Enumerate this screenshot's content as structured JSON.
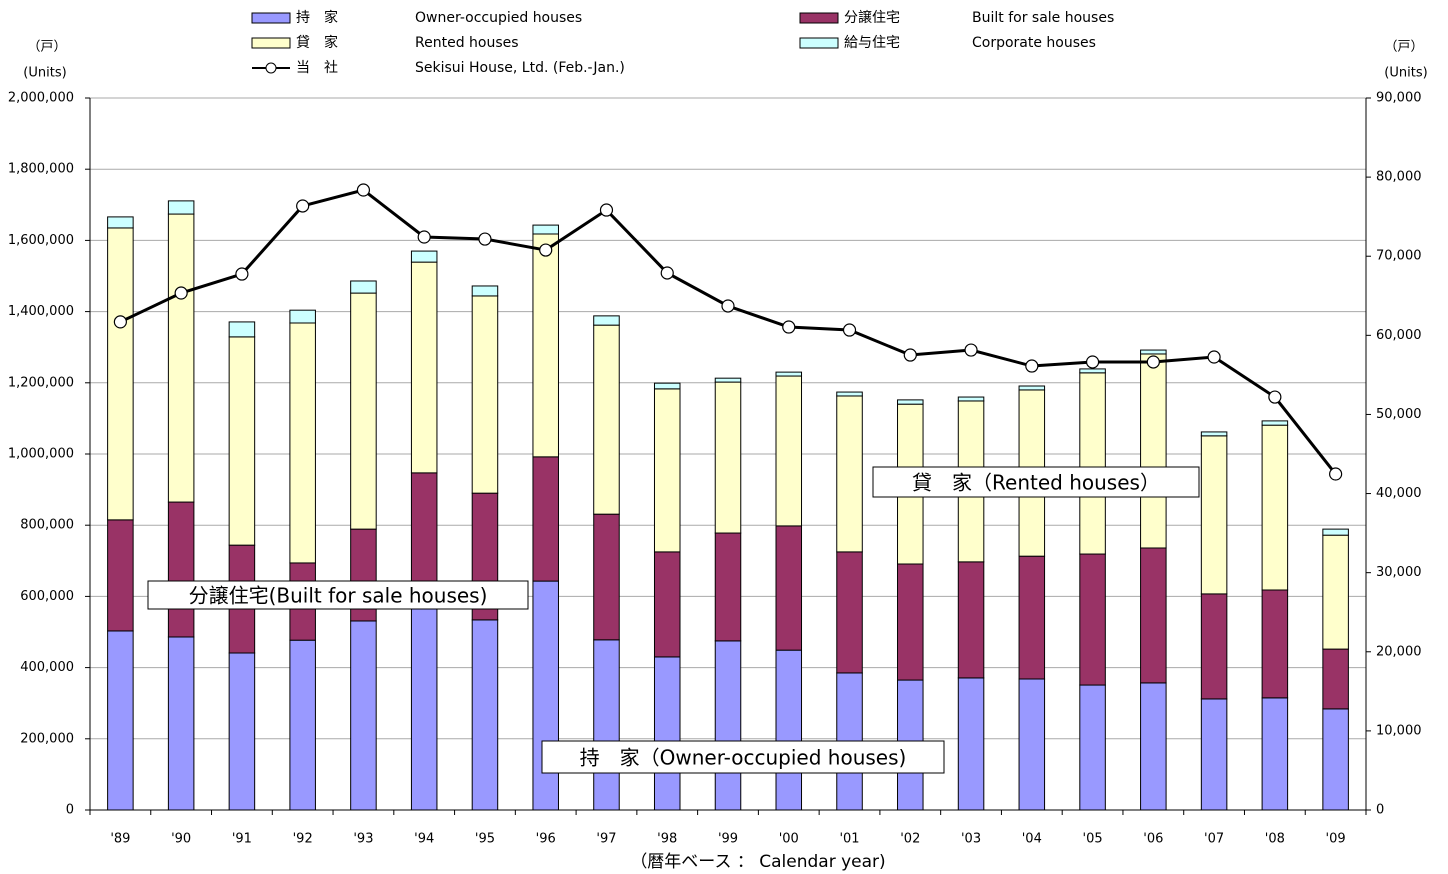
{
  "chart_data": {
    "type": "stacked-bar-line",
    "left_unit_labels": [
      "（戸）",
      "(Units)"
    ],
    "right_unit_labels": [
      "（戸）",
      "(Units)"
    ],
    "x_label": "（暦年ベース ： Calendar year)",
    "annotations": [
      "分譲住宅(Built for sale houses)",
      "貸　家（Rented houses）",
      "持　家（Owner-occupied houses)"
    ],
    "categories": [
      "'89",
      "'90",
      "'91",
      "'92",
      "'93",
      "'94",
      "'95",
      "'96",
      "'97",
      "'98",
      "'99",
      "'00",
      "'01",
      "'02",
      "'03",
      "'04",
      "'05",
      "'06",
      "'07",
      "'08",
      "'09"
    ],
    "series": [
      {
        "name": "持　家",
        "label_en": "Owner-occupied houses",
        "color": "#9999ff",
        "values": [
          503000,
          486000,
          441000,
          477000,
          531000,
          570000,
          534000,
          643000,
          478000,
          430000,
          475000,
          449000,
          385000,
          365000,
          371000,
          368000,
          351000,
          357000,
          312000,
          315000,
          284000
        ]
      },
      {
        "name": "分譲住宅",
        "label_en": "Built for sale houses",
        "color": "#993366",
        "values": [
          312000,
          379000,
          303000,
          217000,
          258000,
          377000,
          356000,
          349000,
          353000,
          295000,
          303000,
          349000,
          340000,
          326000,
          326000,
          345000,
          368000,
          379000,
          295000,
          303000,
          168000
        ]
      },
      {
        "name": "貸　家",
        "label_en": "Rented houses",
        "color": "#ffffcc",
        "values": [
          820000,
          809000,
          585000,
          674000,
          663000,
          592000,
          554000,
          626000,
          531000,
          458000,
          424000,
          421000,
          438000,
          449000,
          452000,
          467000,
          509000,
          545000,
          444000,
          463000,
          320000
        ]
      },
      {
        "name": "給与住宅",
        "label_en": "Corporate houses",
        "color": "#ccffff",
        "values": [
          31000,
          37000,
          42000,
          36000,
          34000,
          31000,
          28000,
          25000,
          26000,
          16000,
          11000,
          11000,
          11000,
          12000,
          11000,
          11000,
          11000,
          11000,
          11000,
          12000,
          17000
        ]
      },
      {
        "name": "当　社",
        "label_en": "Sekisui House, Ltd. (Feb.-Jan.)",
        "color": "#000000",
        "axis": "y2",
        "kind": "line",
        "values": [
          61700,
          65350,
          67750,
          76350,
          78370,
          72430,
          72170,
          70780,
          75840,
          67880,
          63710,
          61050,
          60670,
          57510,
          58140,
          56120,
          56630,
          56630,
          57260,
          52200,
          42470
        ]
      }
    ],
    "ylim": [
      0,
      2000000
    ],
    "yticks": [
      0,
      {
        "value": 200000,
        "label": "200,000"
      },
      {
        "value": 400000,
        "label": "400,000"
      },
      {
        "value": 600000,
        "label": "600,000"
      },
      {
        "value": 800000,
        "label": "800,000"
      },
      {
        "value": 1000000,
        "label": "1,000,000"
      },
      {
        "value": 1200000,
        "label": "1,200,000"
      },
      {
        "value": 1400000,
        "label": "1,400,000"
      },
      {
        "value": 1600000,
        "label": "1,600,000"
      },
      {
        "value": 1800000,
        "label": "1,800,000"
      },
      {
        "value": 2000000,
        "label": "2,000,000"
      }
    ],
    "y2lim": [
      0,
      90000
    ],
    "y2ticks": [
      0,
      {
        "value": 10000,
        "label": "10,000"
      },
      {
        "value": 20000,
        "label": "20,000"
      },
      {
        "value": 30000,
        "label": "30,000"
      },
      {
        "value": 40000,
        "label": "40,000"
      },
      {
        "value": 50000,
        "label": "50,000"
      },
      {
        "value": 60000,
        "label": "60,000"
      },
      {
        "value": 70000,
        "label": "70,000"
      },
      {
        "value": 80000,
        "label": "80,000"
      },
      {
        "value": 90000,
        "label": "90,000"
      }
    ],
    "grid": true
  }
}
